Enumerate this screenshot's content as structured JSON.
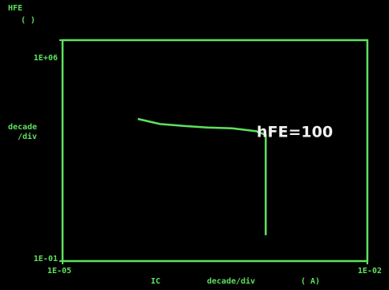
{
  "chart_data": {
    "type": "line",
    "log_x": true,
    "log_y": true,
    "color": "#5fe05f",
    "y_label": "HFE",
    "y_unit": "( )",
    "y_scale_label": [
      "decade",
      "/div"
    ],
    "x_label": "IC",
    "x_scale_label": "decade/div",
    "x_unit": "( A)",
    "annotation": "hFE=100",
    "xlim": [
      1e-05,
      0.01
    ],
    "ylim": [
      0.1,
      1000000
    ],
    "xticks": [
      {
        "value": 1e-05,
        "label": "1E-05"
      },
      {
        "value": 0.01,
        "label": "1E-02"
      }
    ],
    "yticks": [
      {
        "value": 0.1,
        "label": "1E-01"
      },
      {
        "value": 1000000,
        "label": "1E+06"
      }
    ],
    "x": [
      5.5e-05,
      9.1e-05,
      0.00016,
      0.00027,
      0.00047,
      0.00081,
      0.001,
      0.001
    ],
    "values": [
      3200,
      2200,
      1900,
      1700,
      1600,
      1300,
      1000,
      0.66
    ]
  }
}
